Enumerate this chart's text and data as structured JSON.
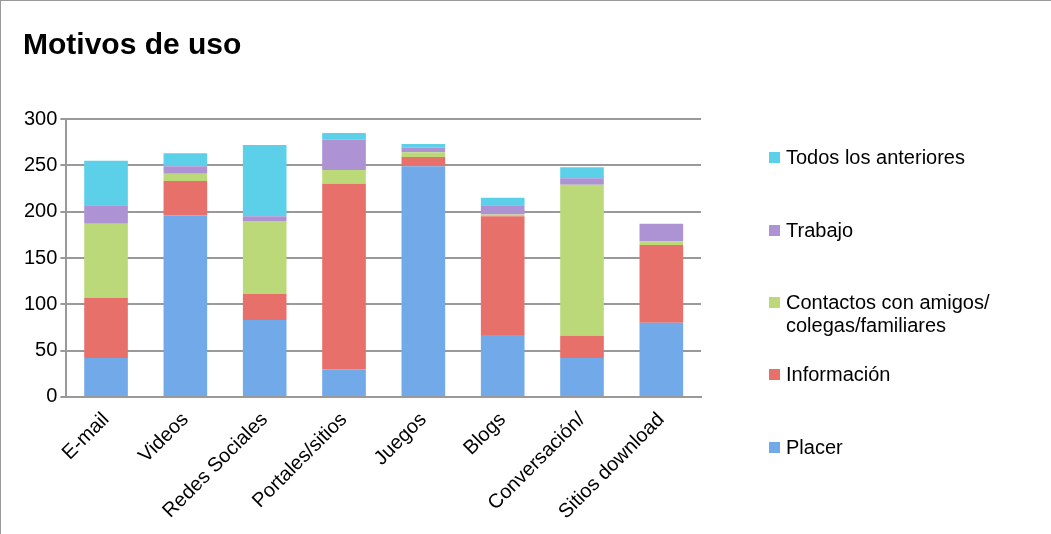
{
  "chart_data": {
    "type": "bar",
    "title": "Motivos de uso",
    "stacked": true,
    "grid": "y",
    "legend": "right",
    "categories": [
      "E-mail",
      "Videos",
      "Redes Sociales",
      "Portales/sitios",
      "Juegos",
      "Blogs",
      "Conversación/",
      "Sitios download"
    ],
    "ylim": [
      0,
      300
    ],
    "yticks": [
      0,
      50,
      100,
      150,
      200,
      250,
      300
    ],
    "series": [
      {
        "name": "Placer",
        "color": "#72a9e8",
        "values": [
          42,
          196,
          83,
          30,
          249,
          67,
          42,
          80
        ]
      },
      {
        "name": "Información",
        "color": "#e8706a",
        "values": [
          65,
          37,
          28,
          200,
          10,
          128,
          24,
          84
        ]
      },
      {
        "name": "Contactos con amigos/ colegas/familiares",
        "color": "#bcd97a",
        "values": [
          80,
          8,
          79,
          15,
          5,
          2,
          163,
          4
        ]
      },
      {
        "name": "Trabajo",
        "color": "#ad92d4",
        "values": [
          20,
          8,
          5,
          33,
          5,
          10,
          7,
          19
        ]
      },
      {
        "name": "Todos los anteriores",
        "color": "#5cd0e8",
        "values": [
          48,
          14,
          77,
          7,
          4,
          8,
          12,
          0
        ]
      }
    ]
  }
}
